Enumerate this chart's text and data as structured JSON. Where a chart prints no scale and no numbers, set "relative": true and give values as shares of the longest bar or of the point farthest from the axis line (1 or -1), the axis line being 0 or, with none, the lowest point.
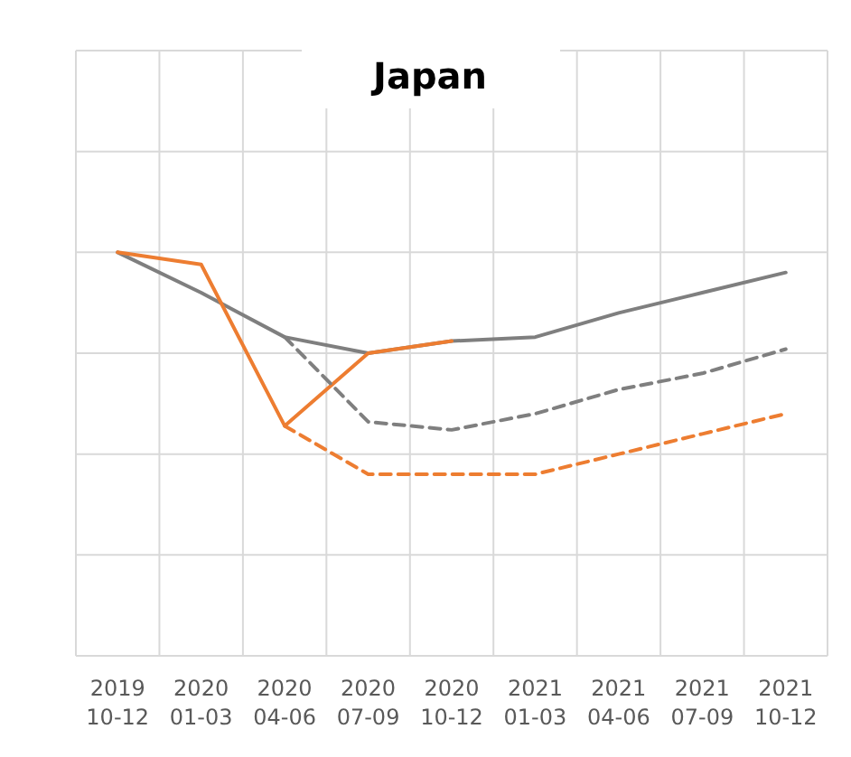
{
  "chart_data": {
    "type": "line",
    "title": "Japan",
    "relative": true,
    "grid": true,
    "marker": "none",
    "categories": [
      "2019 10-12",
      "2020 01-03",
      "2020 04-06",
      "2020 07-09",
      "2020 10-12",
      "2021 01-03",
      "2021 04-06",
      "2021 07-09",
      "2021 10-12"
    ],
    "series": [
      {
        "color": "#7f7f7f",
        "line_style": "solid",
        "values": [
          1.0,
          0.9,
          0.79,
          0.75,
          0.78,
          0.79,
          0.85,
          0.9,
          0.95
        ]
      },
      {
        "color": "#ed7d31",
        "line_style": "solid",
        "values": [
          1.0,
          0.97,
          0.57,
          0.75,
          0.78,
          null,
          null,
          null,
          null
        ]
      },
      {
        "color": "#7f7f7f",
        "line_style": "dashed",
        "values": [
          null,
          null,
          0.79,
          0.58,
          0.56,
          0.6,
          0.66,
          0.7,
          0.76
        ]
      },
      {
        "color": "#ed7d31",
        "line_style": "dashed",
        "values": [
          null,
          null,
          0.57,
          0.45,
          0.45,
          0.45,
          0.5,
          0.55,
          0.6
        ]
      }
    ]
  }
}
